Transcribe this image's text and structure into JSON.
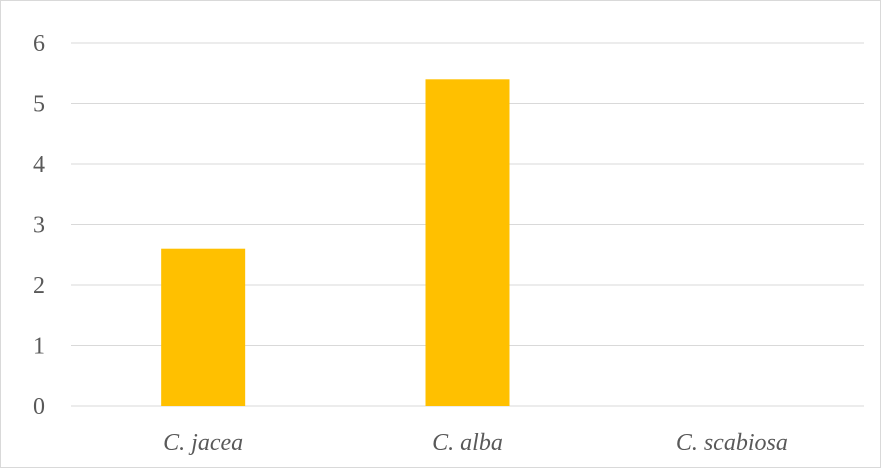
{
  "chart_data": {
    "type": "bar",
    "categories": [
      "C. jacea",
      "C. alba",
      "C. scabiosa"
    ],
    "values": [
      2.6,
      5.4,
      0
    ],
    "ylim": [
      0,
      6
    ],
    "yticks": [
      0,
      1,
      2,
      3,
      4,
      5,
      6
    ],
    "grid": true,
    "legend": "none",
    "bar_color": "#FFC000",
    "gridline_color": "#D9D9D9",
    "label_color": "#595959"
  }
}
